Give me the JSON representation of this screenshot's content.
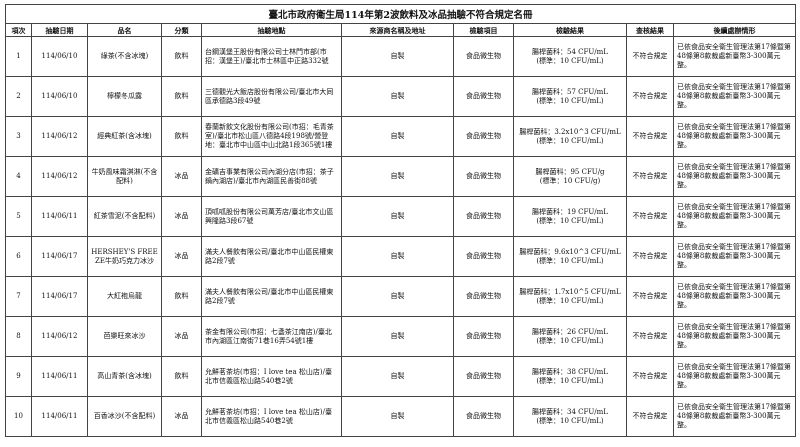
{
  "header": {
    "title": "臺北市政府衛生局114年第2波飲料及冰品抽驗不符合規定名冊"
  },
  "table": {
    "columns": [
      "項次",
      "抽驗日期",
      "品名",
      "分類",
      "抽驗地點",
      "來源商名稱及地址",
      "檢驗項目",
      "檢驗結果",
      "查核結果",
      "後續處辦情形"
    ],
    "rows": [
      [
        "1",
        "114/06/10",
        "綠茶(不含冰塊)",
        "飲料",
        "台鋼漢堡王股份有限公司士林門市部(市招：漢堡王)/臺北市士林區中正路332號",
        "自製",
        "食品微生物",
        [
          "腸桿菌科：54 CFU/mL",
          "(標準：10 CFU/mL)"
        ],
        "不符合規定",
        "已依食品安全衛生管理法第17條暨第48條第8款裁處新臺幣3-300萬元整。"
      ],
      [
        "2",
        "114/06/10",
        "檸檬冬瓜露",
        "飲料",
        "三德觀光大飯店股份有限公司/臺北市大同區承德路3段49號",
        "自製",
        "食品微生物",
        [
          "腸桿菌科：57 CFU/mL",
          "(標準：10 CFU/mL)"
        ],
        "不符合規定",
        "已依食品安全衛生管理法第17條暨第48條第8款裁處新臺幣3-300萬元整。"
      ],
      [
        "3",
        "114/06/12",
        "經典紅茶(含冰塊)",
        "飲料",
        "春蘭新飲文化股份有限公司(市招：毛青茶室)/臺北市松山區八德路4段198號/營登地：臺北市中山區中山北路1段365號1樓",
        "自製",
        "食品微生物",
        [
          "腸桿菌科：3.2x10^3 CFU/mL",
          "(標準：10 CFU/mL)"
        ],
        "不符合規定",
        "已依食品安全衛生管理法第17條暨第48條第8款裁處新臺幣3-300萬元整。"
      ],
      [
        "4",
        "114/06/12",
        "牛奶風味霜淇淋(不含配料)",
        "冰品",
        "金礦吉事業有限公司內湖分店(市招：茶子鍋內湖店)/臺北市內湖區民善街88號",
        "自製",
        "食品微生物",
        [
          "腸桿菌科：95 CFU/g",
          "(標準：10 CFU/g)"
        ],
        "不符合規定",
        "已依食品安全衛生管理法第17條暨第48條第8款裁處新臺幣3-300萬元整。"
      ],
      [
        "5",
        "114/06/11",
        "紅茶雪泥(不含配料)",
        "冰品",
        "頂呱呱股份有限公司萬芳店/臺北市文山區興隆路3段67號",
        "自製",
        "食品微生物",
        [
          "腸桿菌科：19 CFU/mL",
          "(標準：10 CFU/mL)"
        ],
        "不符合規定",
        "已依食品安全衛生管理法第17條暨第48條第8款裁處新臺幣3-300萬元整。"
      ],
      [
        "6",
        "114/06/17",
        "HERSHEY'S FREEZE牛奶巧克力冰沙",
        "冰品",
        "滿夫人餐飲有限公司/臺北市中山區民權東路2段7號",
        "自製",
        "食品微生物",
        [
          "腸桿菌科：9.6x10^3 CFU/mL",
          "(標準：10 CFU/mL)"
        ],
        "不符合規定",
        "已依食品安全衛生管理法第17條暨第48條第8款裁處新臺幣3-300萬元整。"
      ],
      [
        "7",
        "114/06/17",
        "大紅袍烏龍",
        "飲料",
        "滿夫人餐飲有限公司/臺北市中山區民權東路2段7號",
        "自製",
        "食品微生物",
        [
          "腸桿菌科：1.7x10^5 CFU/mL",
          "(標準：10 CFU/mL)"
        ],
        "不符合規定",
        "已依食品安全衛生管理法第17條暨第48條第8款裁處新臺幣3-300萬元整。"
      ],
      [
        "8",
        "114/06/12",
        "芭樂旺來冰沙",
        "冰品",
        "茶金有限公司(市招：七盞茶江南店)/臺北市內湖區江南街71巷16弄54號1樓",
        "自製",
        "食品微生物",
        [
          "腸桿菌科：26 CFU/mL",
          "(標準：10 CFU/mL)"
        ],
        "不符合規定",
        "已依食品安全衛生管理法第17條暨第48條第8款裁處新臺幣3-300萬元整。"
      ],
      [
        "9",
        "114/06/11",
        "高山青茶(含冰塊)",
        "飲料",
        "允鮮茗茶坊(市招：I love tea 松山店)/臺北市信義區松山路540巷2號",
        "自製",
        "食品微生物",
        [
          "腸桿菌科：38 CFU/mL",
          "(標準：10 CFU/mL)"
        ],
        "不符合規定",
        "已依食品安全衛生管理法第17條暨第48條第8款裁處新臺幣3-300萬元整。"
      ],
      [
        "10",
        "114/06/11",
        "百香冰沙(不含配料)",
        "冰品",
        "允鮮茗茶坊(市招：I love tea 松山店)/臺北市信義區松山路540巷2號",
        "自製",
        "食品微生物",
        [
          "腸桿菌科：34 CFU/mL",
          "(標準：10 CFU/mL)"
        ],
        "不符合規定",
        "已依食品安全衛生管理法第17條暨第48條第8款裁處新臺幣3-300萬元整。"
      ]
    ]
  }
}
